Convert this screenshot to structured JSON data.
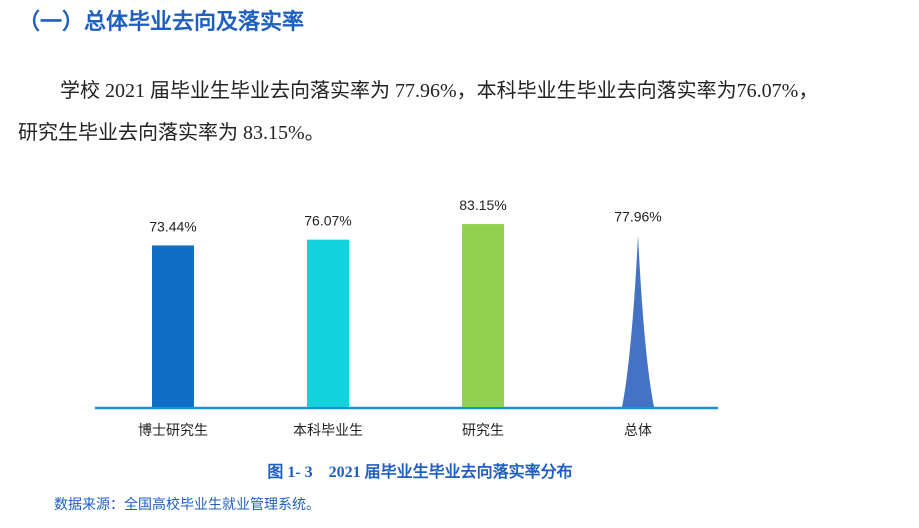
{
  "heading": "（一）总体毕业去向及落实率",
  "paragraph": "学校 2021 届毕业生毕业去向落实率为 77.96%，本科毕业生毕业去向落实率为76.07%，研究生毕业去向落实率为 83.15%。",
  "chart_data": {
    "type": "bar",
    "categories": [
      "博士研究生",
      "本科毕业生",
      "研究生",
      "总体"
    ],
    "values": [
      73.44,
      76.07,
      83.15,
      77.96
    ],
    "value_labels": [
      "73.44%",
      "76.07%",
      "83.15%",
      "77.96%"
    ],
    "colors": [
      "#0f6fc6",
      "#12d2dc",
      "#92d050",
      "#4472c4"
    ],
    "shapes": [
      "bar",
      "bar",
      "bar",
      "peak"
    ]
  },
  "caption": "图 1- 3　2021 届毕业生毕业去向落实率分布",
  "source": "数据来源：全国高校毕业生就业管理系统。"
}
